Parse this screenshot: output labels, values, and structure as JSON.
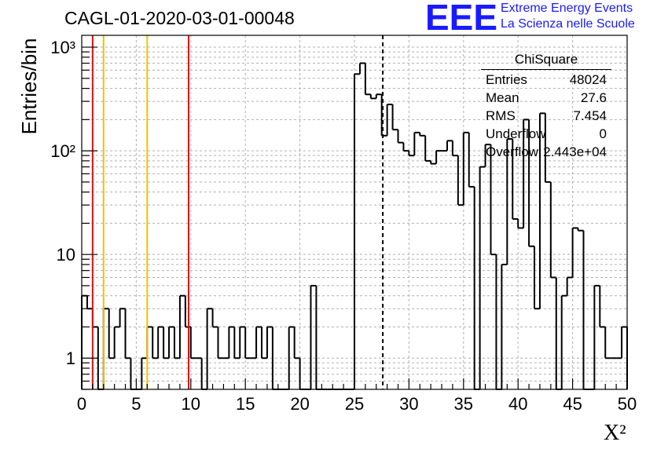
{
  "title": "CAGL-01-2020-03-01-00048",
  "brand": {
    "logo_text": "EEE",
    "line1": "Extreme Energy Events",
    "line2": "La Scienza nelle Scuole",
    "color": "#1a1aff"
  },
  "stats": {
    "header": "ChiSquare",
    "rows": [
      {
        "label": "Entries",
        "value": "48024"
      },
      {
        "label": "Mean",
        "value": "27.6"
      },
      {
        "label": "RMS",
        "value": "7.454"
      },
      {
        "label": "Underflow",
        "value": "0"
      },
      {
        "label": "Overflow",
        "value": "2.443e+04"
      }
    ]
  },
  "chart_data": {
    "type": "histogram",
    "xlabel": "X²",
    "ylabel": "Entries/bin",
    "xlim": [
      0,
      50
    ],
    "ylim": [
      0.5,
      1300
    ],
    "yscale": "log",
    "grid": true,
    "x_ticks": [
      "0",
      "5",
      "10",
      "15",
      "20",
      "25",
      "30",
      "35",
      "40",
      "45",
      "50"
    ],
    "y_ticks": [
      {
        "value": 1,
        "label": "1"
      },
      {
        "value": 10,
        "label": "10"
      },
      {
        "value": 100,
        "label": "10²"
      },
      {
        "value": 1000,
        "label": "10³"
      }
    ],
    "bin_width": 0.5,
    "bin_start": 0,
    "values": [
      4,
      3,
      2,
      0,
      3,
      1,
      2,
      3,
      1,
      0,
      0,
      1,
      2,
      1,
      2,
      1,
      2,
      1,
      4,
      2,
      1,
      1,
      0,
      3,
      2,
      1,
      1,
      2,
      1,
      2,
      1,
      1,
      2,
      1,
      2,
      0,
      0,
      0,
      2,
      1,
      0,
      0,
      5,
      0,
      0,
      0,
      0,
      0,
      0,
      0,
      550,
      700,
      350,
      320,
      350,
      140,
      280,
      160,
      120,
      100,
      90,
      150,
      140,
      80,
      75,
      100,
      100,
      125,
      90,
      30,
      150,
      45,
      0,
      70,
      115,
      10,
      0,
      8,
      130,
      22,
      18,
      200,
      12,
      3,
      230,
      50,
      6,
      0,
      4,
      6,
      18,
      17,
      0.5,
      0.5,
      5,
      2,
      1,
      1,
      1,
      2
    ],
    "vlines": [
      {
        "x": 1.0,
        "color": "#dd1111",
        "style": "solid"
      },
      {
        "x": 2.0,
        "color": "#f2c200",
        "style": "solid"
      },
      {
        "x": 6.0,
        "color": "#f2c200",
        "style": "solid"
      },
      {
        "x": 9.8,
        "color": "#dd1111",
        "style": "solid"
      },
      {
        "x": 27.6,
        "color": "#000000",
        "style": "dashed"
      }
    ]
  }
}
